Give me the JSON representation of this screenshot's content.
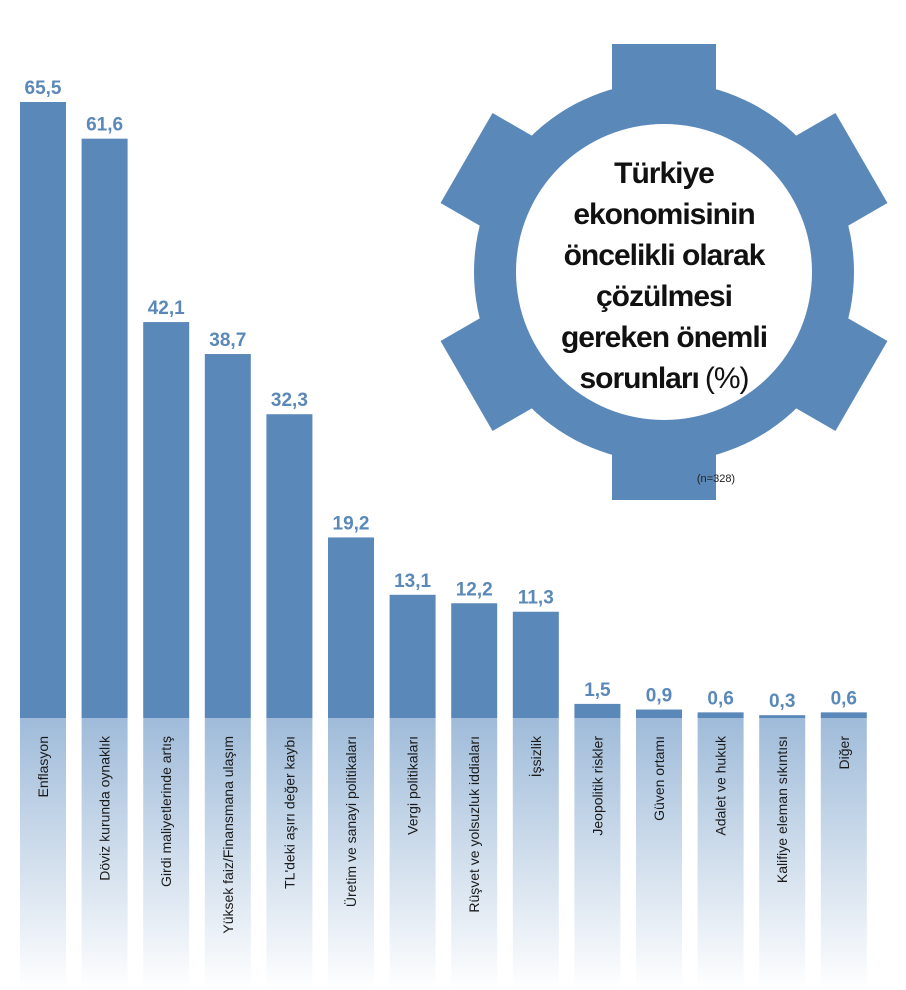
{
  "chart_data": {
    "type": "bar",
    "title_lines": [
      "Türkiye",
      "ekonomisinin",
      "öncelikli olarak",
      "çözülmesi",
      "gereken önemli",
      "sorunları"
    ],
    "title_unit": "(%)",
    "note": "(n=328)",
    "categories": [
      "Enflasyon",
      "Döviz kurunda oynaklık",
      "Girdi maliyetlerinde artış",
      "Yüksek faiz/Finansmana ulaşım",
      "TL'deki aşırı değer kaybı",
      "Üretim ve sanayi politikaları",
      "Vergi politikaları",
      "Rüşvet ve yolsuzluk iddiaları",
      "İşsizlik",
      "Jeopolitik riskler",
      "Güven ortamı",
      "Adalet ve hukuk",
      "Kalifiye eleman sıkıntısı",
      "Diğer"
    ],
    "values": [
      65.5,
      61.6,
      42.1,
      38.7,
      32.3,
      19.2,
      13.1,
      12.2,
      11.3,
      1.5,
      0.9,
      0.6,
      0.3,
      0.6
    ],
    "value_labels": [
      "65,5",
      "61,6",
      "42,1",
      "38,7",
      "32,3",
      "19,2",
      "13,1",
      "12,2",
      "11,3",
      "1,5",
      "0,9",
      "0,6",
      "0,3",
      "0,6"
    ],
    "color": "#5a88b8"
  }
}
